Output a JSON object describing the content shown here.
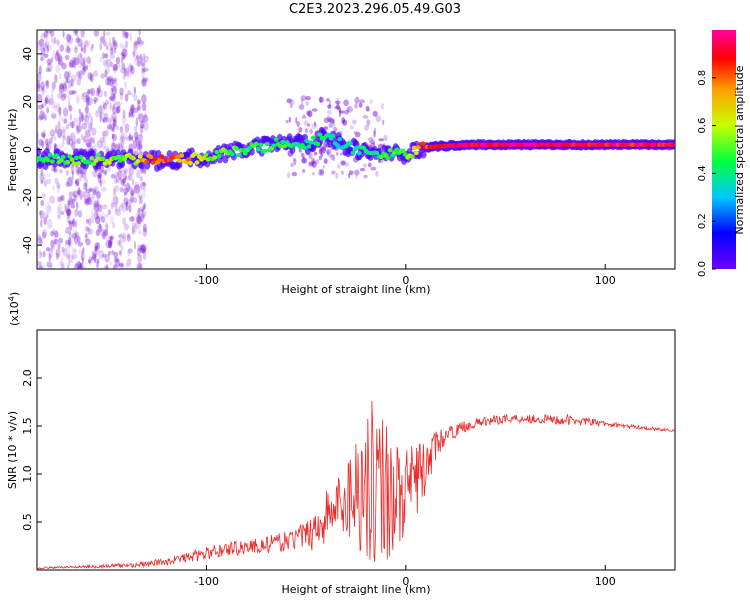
{
  "title": "C2E3.2023.296.05.49.G03",
  "colors": {
    "snr_line": "#ee2a2a",
    "axis": "#000000",
    "ridge_low": "#6f00d6",
    "ridge_mid": "#00e0a0",
    "ridge_high": "#e00020"
  },
  "chart_data": [
    {
      "type": "heatmap",
      "title": "",
      "xlabel": "Height of straight line (km)",
      "ylabel": "Frequency (Hz)",
      "xlim": [
        -185,
        135
      ],
      "ylim": [
        -50,
        50
      ],
      "x_ticks": [
        -100,
        0,
        100
      ],
      "y_ticks": [
        -40,
        -20,
        0,
        20,
        40
      ],
      "grid": false,
      "colorbar": {
        "label": "Normalized spectral amplitude",
        "range": [
          0.0,
          1.0
        ],
        "ticks": [
          0.0,
          0.2,
          0.4,
          0.6,
          0.8
        ],
        "colormap": [
          "#7000ff",
          "#0000ff",
          "#00c8ff",
          "#00ff40",
          "#c8ff00",
          "#ffa000",
          "#ff0000",
          "#ff00a0"
        ]
      },
      "ridge": {
        "x": [
          -185,
          -160,
          -140,
          -120,
          -100,
          -80,
          -60,
          -50,
          -40,
          -30,
          -20,
          -10,
          0,
          10,
          30,
          60,
          100,
          135
        ],
        "frequency": [
          -4,
          -4,
          -4,
          -5,
          -3,
          0,
          3,
          2,
          6,
          1,
          -1,
          -2,
          -2,
          1,
          2,
          2,
          2,
          2
        ],
        "amplitude": [
          0.45,
          0.5,
          0.55,
          0.9,
          0.55,
          0.45,
          0.45,
          0.4,
          0.4,
          0.35,
          0.4,
          0.45,
          0.5,
          0.9,
          0.95,
          1.0,
          0.95,
          0.95
        ]
      }
    },
    {
      "type": "line",
      "title": "",
      "xlabel": "Height of straight line (km)",
      "ylabel": "SNR (10 * v/v)",
      "multiplier": "(x10",
      "multiplier_exp": "4",
      "multiplier_close": ")",
      "xlim": [
        -185,
        135
      ],
      "ylim": [
        0,
        2.5
      ],
      "x_ticks": [
        -100,
        0,
        100
      ],
      "y_ticks": [
        0.5,
        1.0,
        1.5,
        2.0
      ],
      "grid": false,
      "series": [
        {
          "x": [
            -185,
            -170,
            -150,
            -130,
            -120,
            -110,
            -100,
            -90,
            -80,
            -70,
            -60,
            -50,
            -45,
            -40,
            -35,
            -30,
            -25,
            -20,
            -15,
            -10,
            -5,
            0,
            5,
            10,
            15,
            20,
            30,
            40,
            50,
            60,
            70,
            80,
            90,
            100,
            110,
            120,
            135
          ],
          "y": [
            0.02,
            0.03,
            0.04,
            0.06,
            0.09,
            0.13,
            0.17,
            0.22,
            0.24,
            0.26,
            0.3,
            0.36,
            0.45,
            0.55,
            0.65,
            0.75,
            0.85,
            0.9,
            0.95,
            0.85,
            0.8,
            0.75,
            0.95,
            1.05,
            1.3,
            1.4,
            1.5,
            1.55,
            1.58,
            1.58,
            1.57,
            1.56,
            1.55,
            1.52,
            1.5,
            1.48,
            1.45
          ],
          "noise_amplitude": [
            0.01,
            0.01,
            0.02,
            0.03,
            0.04,
            0.05,
            0.07,
            0.08,
            0.08,
            0.09,
            0.1,
            0.15,
            0.25,
            0.3,
            0.3,
            0.45,
            0.6,
            0.8,
            0.9,
            0.8,
            0.6,
            0.5,
            0.4,
            0.3,
            0.15,
            0.08,
            0.06,
            0.05,
            0.05,
            0.05,
            0.05,
            0.06,
            0.04,
            0.03,
            0.02,
            0.02,
            0.01
          ]
        }
      ]
    }
  ]
}
